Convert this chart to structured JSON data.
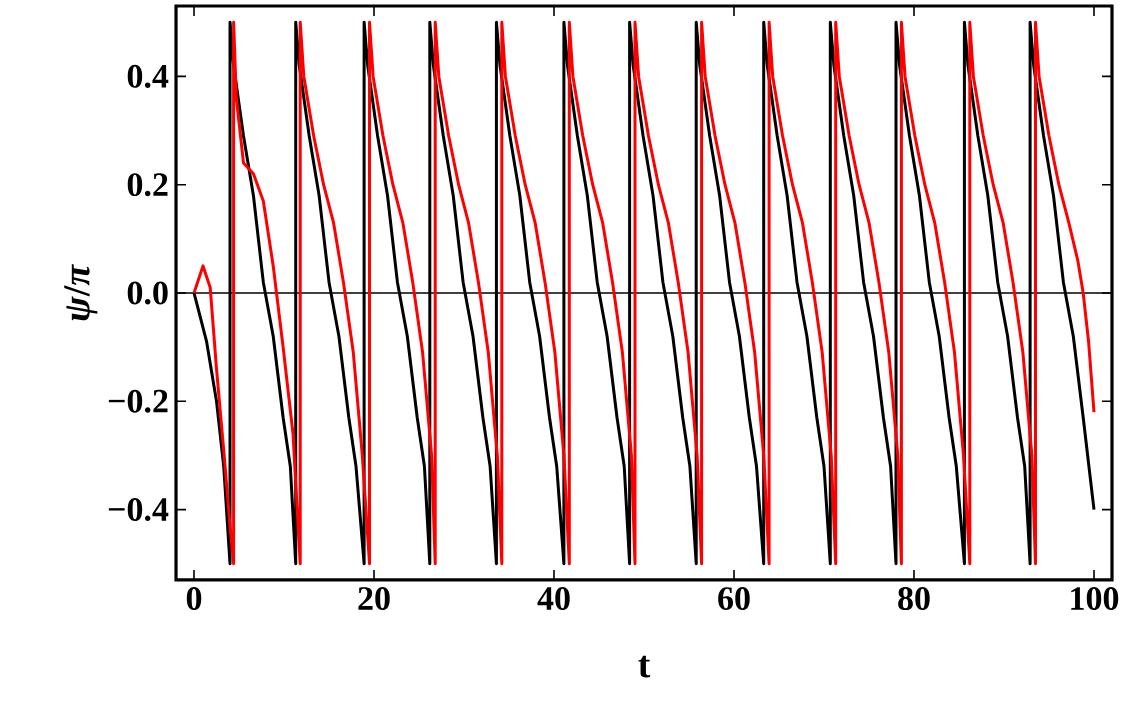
{
  "chart_data": {
    "type": "line",
    "xlabel": "t",
    "ylabel": "*ψ*/*π*",
    "xlim": [
      -2,
      102
    ],
    "ylim": [
      -0.53,
      0.53
    ],
    "xticks": [
      0,
      20,
      40,
      60,
      80,
      100
    ],
    "yticks": [
      {
        "value": -0.4,
        "label": "−0.4"
      },
      {
        "value": -0.2,
        "label": "−0.2"
      },
      {
        "value": 0,
        "label": "0.0"
      },
      {
        "value": 0.2,
        "label": "0.2"
      },
      {
        "value": 0.4,
        "label": "0.4"
      }
    ],
    "ref_lines": [
      {
        "axis": "y",
        "value": 0,
        "color": "#000000"
      }
    ],
    "marker": "none",
    "line_style": "solid",
    "series": [
      {
        "color": "#000000",
        "x": [
          0,
          1.4,
          2.5,
          3.3,
          4.0,
          4.0,
          4.4,
          5.5,
          6.6,
          7.7,
          8.8,
          9.9,
          10.7,
          11.3,
          11.3,
          11.7,
          12.8,
          13.9,
          15.0,
          16.1,
          17.2,
          18.0,
          18.9,
          18.9,
          19.3,
          20.4,
          21.5,
          22.6,
          23.7,
          24.8,
          25.6,
          26.2,
          26.2,
          26.6,
          27.7,
          28.8,
          29.9,
          31.0,
          32.1,
          32.9,
          33.6,
          33.6,
          34.0,
          35.1,
          36.2,
          37.3,
          38.4,
          39.5,
          40.3,
          41.1,
          41.1,
          41.5,
          42.6,
          43.7,
          44.8,
          45.9,
          47.0,
          47.8,
          48.4,
          48.4,
          48.8,
          49.9,
          51.0,
          52.1,
          53.2,
          54.3,
          55.1,
          55.8,
          55.8,
          56.2,
          57.3,
          58.4,
          59.5,
          60.6,
          61.7,
          62.5,
          63.3,
          63.3,
          63.7,
          64.8,
          65.9,
          67.0,
          68.1,
          69.2,
          70.0,
          70.7,
          70.7,
          71.1,
          72.2,
          73.3,
          74.4,
          75.5,
          76.6,
          77.4,
          78.0,
          78.0,
          78.4,
          79.5,
          80.6,
          81.7,
          82.8,
          83.9,
          84.7,
          85.6,
          85.6,
          86.0,
          87.1,
          88.2,
          89.3,
          90.4,
          91.5,
          92.3,
          92.9,
          92.9,
          93.3,
          94.4,
          95.5,
          96.6,
          97.7,
          98.8,
          100
        ],
        "values": [
          0,
          -0.09,
          -0.2,
          -0.32,
          -0.5,
          0.5,
          0.42,
          0.29,
          0.18,
          0.02,
          -0.08,
          -0.23,
          -0.32,
          -0.5,
          0.5,
          0.42,
          0.29,
          0.18,
          0.02,
          -0.08,
          -0.23,
          -0.32,
          -0.5,
          0.5,
          0.42,
          0.29,
          0.18,
          0.02,
          -0.08,
          -0.23,
          -0.32,
          -0.5,
          0.5,
          0.42,
          0.29,
          0.18,
          0.02,
          -0.08,
          -0.23,
          -0.32,
          -0.5,
          0.5,
          0.42,
          0.29,
          0.18,
          0.02,
          -0.08,
          -0.23,
          -0.32,
          -0.5,
          0.5,
          0.42,
          0.29,
          0.18,
          0.02,
          -0.08,
          -0.23,
          -0.32,
          -0.5,
          0.5,
          0.42,
          0.29,
          0.18,
          0.02,
          -0.08,
          -0.23,
          -0.32,
          -0.5,
          0.5,
          0.42,
          0.29,
          0.18,
          0.02,
          -0.08,
          -0.23,
          -0.32,
          -0.5,
          0.5,
          0.42,
          0.29,
          0.18,
          0.02,
          -0.08,
          -0.23,
          -0.32,
          -0.5,
          0.5,
          0.42,
          0.29,
          0.18,
          0.02,
          -0.08,
          -0.23,
          -0.32,
          -0.5,
          0.5,
          0.42,
          0.29,
          0.18,
          0.02,
          -0.08,
          -0.23,
          -0.32,
          -0.5,
          0.5,
          0.42,
          0.29,
          0.18,
          0.02,
          -0.08,
          -0.23,
          -0.32,
          -0.5,
          0.5,
          0.42,
          0.29,
          0.18,
          0.02,
          -0.08,
          -0.23,
          -0.4
        ]
      },
      {
        "color": "#ff0000",
        "x": [
          0,
          1.0,
          1.8,
          2.5,
          3.3,
          4.0,
          4.4,
          4.4,
          4.7,
          5.5,
          6.6,
          7.7,
          8.8,
          9.9,
          11.0,
          11.8,
          11.8,
          12.2,
          13.3,
          14.4,
          15.5,
          16.6,
          17.7,
          18.7,
          19.5,
          19.5,
          19.9,
          21.0,
          22.1,
          23.2,
          24.3,
          25.4,
          26.4,
          26.8,
          26.8,
          27.2,
          28.3,
          29.4,
          30.5,
          31.6,
          32.7,
          33.7,
          34.2,
          34.2,
          34.6,
          35.7,
          36.8,
          37.9,
          39.0,
          40.1,
          41.1,
          41.7,
          41.7,
          42.1,
          43.2,
          44.3,
          45.4,
          46.5,
          47.6,
          48.6,
          49.0,
          49.0,
          49.4,
          50.5,
          51.6,
          52.7,
          53.8,
          54.9,
          55.9,
          56.4,
          56.4,
          56.8,
          57.9,
          59.0,
          60.1,
          61.2,
          62.3,
          63.3,
          63.9,
          63.9,
          64.3,
          65.4,
          66.5,
          67.6,
          68.7,
          69.8,
          70.8,
          71.3,
          71.3,
          71.7,
          72.8,
          73.9,
          75.0,
          76.1,
          77.2,
          78.2,
          78.6,
          78.6,
          79.0,
          80.1,
          81.2,
          82.3,
          83.4,
          84.5,
          85.5,
          86.2,
          86.2,
          86.6,
          87.7,
          88.8,
          89.9,
          91.0,
          92.1,
          93.1,
          93.5,
          93.5,
          93.9,
          95.0,
          96.1,
          97.2,
          98.2,
          98.8,
          99.4,
          100
        ],
        "values": [
          0,
          0.05,
          0.01,
          -0.14,
          -0.29,
          -0.43,
          -0.5,
          0.5,
          0.36,
          0.24,
          0.22,
          0.17,
          0.05,
          -0.1,
          -0.26,
          -0.5,
          0.5,
          0.4,
          0.29,
          0.2,
          0.13,
          0.02,
          -0.11,
          -0.3,
          -0.5,
          0.5,
          0.4,
          0.29,
          0.2,
          0.13,
          0.02,
          -0.11,
          -0.3,
          -0.5,
          0.5,
          0.4,
          0.29,
          0.2,
          0.13,
          0.02,
          -0.11,
          -0.3,
          -0.5,
          0.5,
          0.4,
          0.29,
          0.2,
          0.13,
          0.02,
          -0.11,
          -0.3,
          -0.5,
          0.5,
          0.4,
          0.29,
          0.2,
          0.13,
          0.02,
          -0.11,
          -0.3,
          -0.5,
          0.5,
          0.4,
          0.29,
          0.2,
          0.13,
          0.02,
          -0.11,
          -0.3,
          -0.5,
          0.5,
          0.4,
          0.29,
          0.2,
          0.13,
          0.02,
          -0.11,
          -0.3,
          -0.5,
          0.5,
          0.4,
          0.29,
          0.2,
          0.13,
          0.02,
          -0.11,
          -0.3,
          -0.5,
          0.5,
          0.4,
          0.29,
          0.2,
          0.13,
          0.02,
          -0.11,
          -0.3,
          -0.5,
          0.5,
          0.4,
          0.29,
          0.2,
          0.13,
          0.02,
          -0.11,
          -0.3,
          -0.5,
          0.5,
          0.4,
          0.29,
          0.2,
          0.13,
          0.02,
          -0.11,
          -0.3,
          -0.5,
          0.5,
          0.4,
          0.29,
          0.2,
          0.13,
          0.06,
          0.0,
          -0.09,
          -0.22
        ]
      }
    ]
  }
}
